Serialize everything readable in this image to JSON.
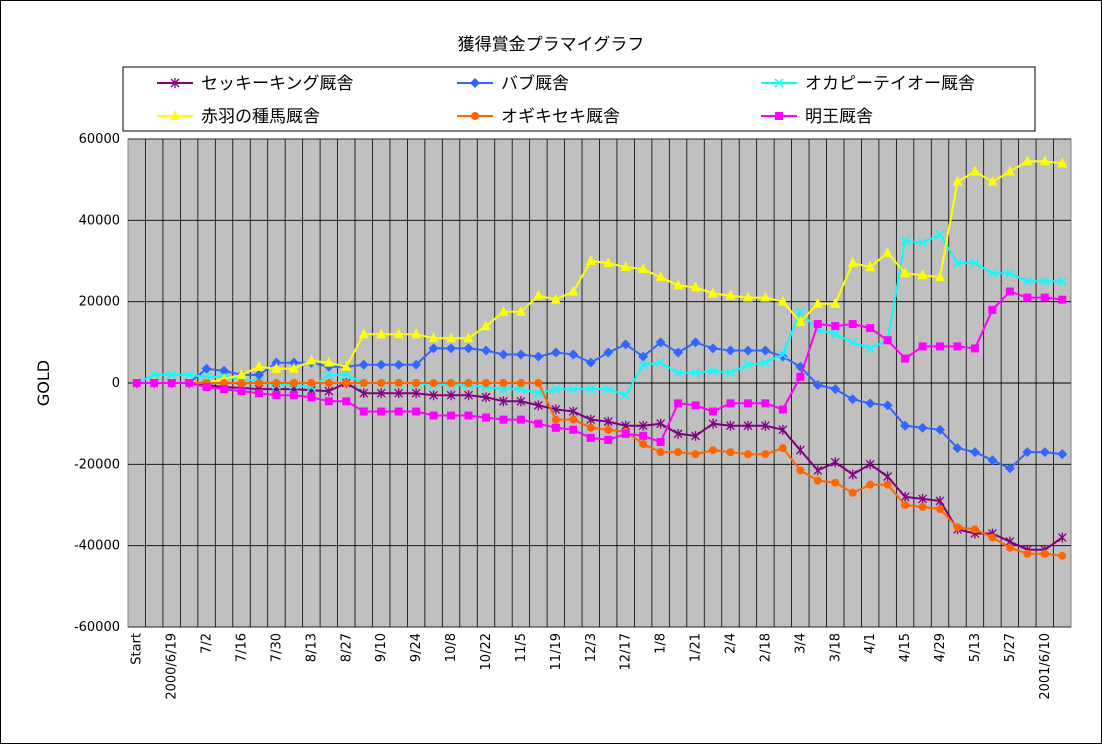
{
  "chart_data": {
    "type": "line",
    "title": "獲得賞金プラマイグラフ",
    "xlabel": "",
    "ylabel": "GOLD",
    "ylim": [
      -60000,
      60000
    ],
    "yticks": [
      60000,
      40000,
      20000,
      0,
      -20000,
      -40000,
      -60000
    ],
    "ytick_labels": [
      "60000",
      "40000",
      "20000",
      "0",
      "-20000",
      "-40000",
      "-60000"
    ],
    "grid": true,
    "legend_position": "top",
    "plot_background": "#c0c0c0",
    "x_labels": [
      {
        "i": 0,
        "label": "Start"
      },
      {
        "i": 2,
        "label": "2000/6/19"
      },
      {
        "i": 4,
        "label": "7/2"
      },
      {
        "i": 6,
        "label": "7/16"
      },
      {
        "i": 8,
        "label": "7/30"
      },
      {
        "i": 10,
        "label": "8/13"
      },
      {
        "i": 12,
        "label": "8/27"
      },
      {
        "i": 14,
        "label": "9/10"
      },
      {
        "i": 16,
        "label": "9/24"
      },
      {
        "i": 18,
        "label": "10/8"
      },
      {
        "i": 20,
        "label": "10/22"
      },
      {
        "i": 22,
        "label": "11/5"
      },
      {
        "i": 24,
        "label": "11/19"
      },
      {
        "i": 26,
        "label": "12/3"
      },
      {
        "i": 28,
        "label": "12/17"
      },
      {
        "i": 30,
        "label": "1/8"
      },
      {
        "i": 32,
        "label": "1/21"
      },
      {
        "i": 34,
        "label": "2/4"
      },
      {
        "i": 36,
        "label": "2/18"
      },
      {
        "i": 38,
        "label": "3/4"
      },
      {
        "i": 40,
        "label": "3/18"
      },
      {
        "i": 42,
        "label": "4/1"
      },
      {
        "i": 44,
        "label": "4/15"
      },
      {
        "i": 46,
        "label": "4/29"
      },
      {
        "i": 48,
        "label": "5/13"
      },
      {
        "i": 50,
        "label": "5/27"
      },
      {
        "i": 52,
        "label": "2001/6/10"
      }
    ],
    "series": [
      {
        "name": "セッキーキング厩舎",
        "color": "#800080",
        "marker": "star",
        "values": [
          0,
          0,
          0,
          0,
          -500,
          -1000,
          -1200,
          -1500,
          -1500,
          -1500,
          -1800,
          -2000,
          0,
          -2500,
          -2500,
          -2500,
          -2500,
          -3000,
          -3000,
          -3000,
          -3500,
          -4500,
          -4500,
          -5500,
          -6500,
          -7000,
          -9000,
          -9500,
          -10500,
          -10500,
          -10000,
          -12500,
          -13000,
          -10000,
          -10500,
          -10500,
          -10500,
          -11500,
          -16500,
          -21500,
          -19500,
          -22500,
          -20000,
          -23000,
          -28000,
          -28500,
          -29000,
          -36000,
          -37000,
          -37000,
          -39000,
          -41000,
          -41000,
          -38000
        ]
      },
      {
        "name": "バブ厩舎",
        "color": "#3366ff",
        "marker": "diamond",
        "values": [
          0,
          0,
          0,
          0,
          3500,
          3000,
          2000,
          2000,
          5000,
          5000,
          5000,
          4000,
          4000,
          4500,
          4500,
          4500,
          4500,
          8500,
          8500,
          8500,
          8000,
          7000,
          7000,
          6500,
          7500,
          7000,
          5000,
          7500,
          9500,
          6500,
          10000,
          7500,
          10000,
          8500,
          8000,
          8000,
          8000,
          6500,
          4000,
          -500,
          -1500,
          -4000,
          -5000,
          -5500,
          -10500,
          -11000,
          -11500,
          -16000,
          -17000,
          -19000,
          -21000,
          -17000,
          -17000,
          -17500
        ]
      },
      {
        "name": "オカピーテイオー厩舎",
        "color": "#00ffff",
        "marker": "x",
        "values": [
          0,
          2000,
          2000,
          2000,
          1500,
          1500,
          1000,
          500,
          -500,
          -500,
          -1000,
          2000,
          2000,
          0,
          0,
          0,
          0,
          -500,
          -500,
          -500,
          -1000,
          -1500,
          -1500,
          -2500,
          -1500,
          -1500,
          -1500,
          -1500,
          -3000,
          4500,
          5000,
          2500,
          2500,
          3000,
          2500,
          4500,
          5000,
          7000,
          17500,
          13000,
          12000,
          10000,
          8500,
          10500,
          35000,
          34500,
          36500,
          29500,
          29500,
          27000,
          27000,
          25000,
          25000,
          25000
        ]
      },
      {
        "name": "赤羽の種馬厩舎",
        "color": "#ffff00",
        "marker": "triangle",
        "values": [
          0,
          0,
          0,
          0,
          0,
          1000,
          2000,
          4000,
          3500,
          3500,
          5500,
          5000,
          4000,
          12000,
          12000,
          12000,
          12000,
          11000,
          11000,
          11000,
          14000,
          17500,
          17500,
          21500,
          20500,
          22500,
          30000,
          29500,
          28500,
          28000,
          26000,
          24000,
          23500,
          22000,
          21500,
          21000,
          21000,
          20000,
          15000,
          19500,
          19500,
          29500,
          28500,
          32000,
          27000,
          26500,
          26000,
          49500,
          52000,
          49500,
          52000,
          54500,
          54500,
          54000
        ]
      },
      {
        "name": "オギキセキ厩舎",
        "color": "#ff6600",
        "marker": "circle",
        "values": [
          0,
          0,
          0,
          0,
          0,
          0,
          0,
          0,
          0,
          0,
          0,
          0,
          0,
          0,
          0,
          0,
          0,
          0,
          0,
          0,
          0,
          0,
          0,
          0,
          -9000,
          -9000,
          -11000,
          -11500,
          -12000,
          -15000,
          -17000,
          -17000,
          -17500,
          -16500,
          -17000,
          -17500,
          -17500,
          -16000,
          -21500,
          -24000,
          -24500,
          -27000,
          -25000,
          -25000,
          -30000,
          -30500,
          -31000,
          -35500,
          -36000,
          -38000,
          -40500,
          -42000,
          -42000,
          -42500
        ]
      },
      {
        "name": "明王厩舎",
        "color": "#ff00ff",
        "marker": "square",
        "values": [
          0,
          0,
          0,
          0,
          -1000,
          -1500,
          -2000,
          -2500,
          -3000,
          -3000,
          -3500,
          -4500,
          -4500,
          -7000,
          -7000,
          -7000,
          -7000,
          -8000,
          -8000,
          -8000,
          -8500,
          -9000,
          -9000,
          -10000,
          -11000,
          -11500,
          -13500,
          -14000,
          -12500,
          -13000,
          -14500,
          -5000,
          -5500,
          -7000,
          -5000,
          -5000,
          -5000,
          -6500,
          1500,
          14500,
          14000,
          14500,
          13500,
          10500,
          6000,
          9000,
          9000,
          9000,
          8500,
          18000,
          22500,
          21000,
          21000,
          20500
        ]
      }
    ]
  }
}
